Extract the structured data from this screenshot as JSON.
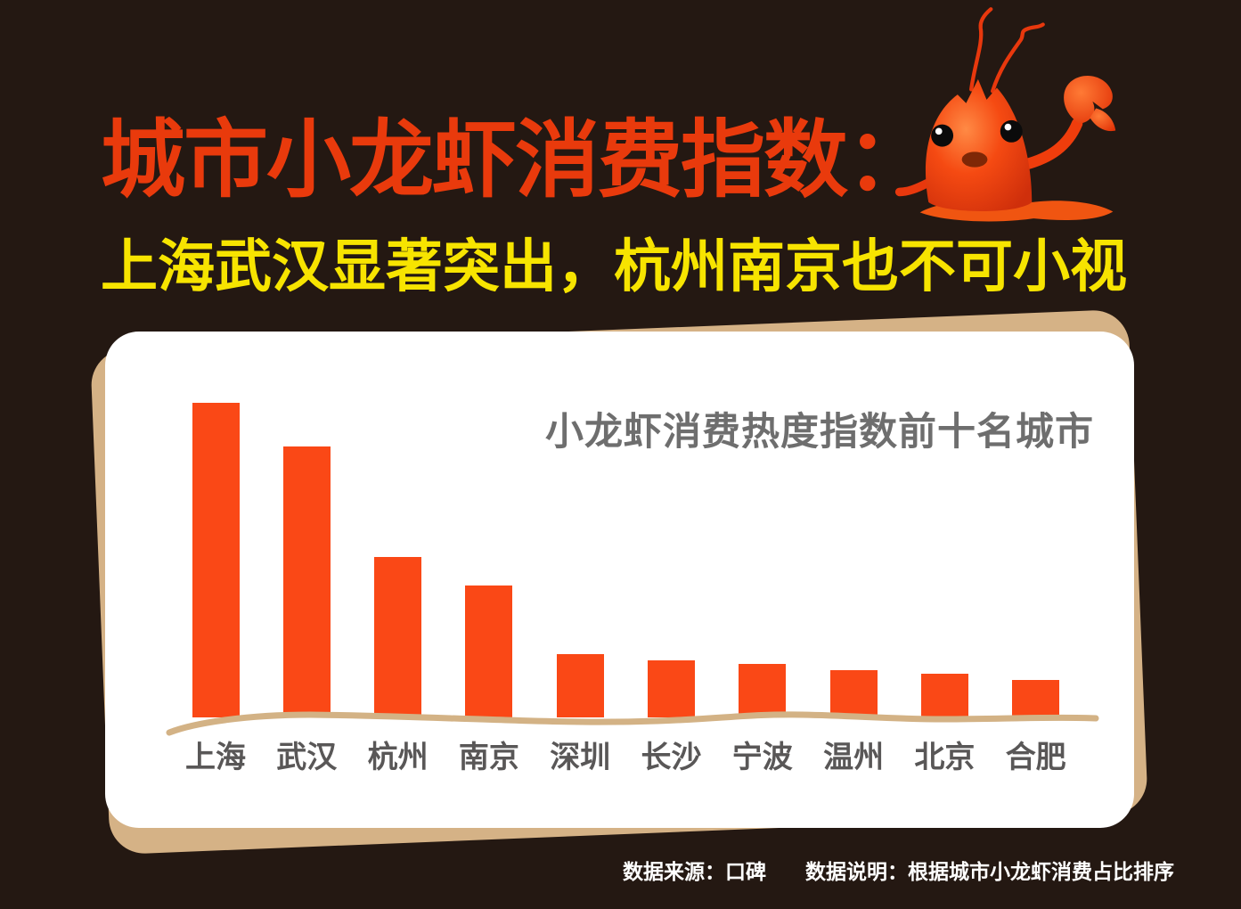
{
  "page": {
    "title": "城市小龙虾消费指数：",
    "subtitle": "上海武汉显著突出，杭州南京也不可小视",
    "background_color": "#241812",
    "title_color": "#e93a0c",
    "subtitle_color": "#f7e400",
    "mascot": "crayfish-mascot"
  },
  "card": {
    "front_color": "#ffffff",
    "back_color": "#d5b286"
  },
  "chart_data": {
    "type": "bar",
    "title": "小龙虾消费热度指数前十名城市",
    "categories": [
      "上海",
      "武汉",
      "杭州",
      "南京",
      "深圳",
      "长沙",
      "宁波",
      "温州",
      "北京",
      "合肥"
    ],
    "values": [
      100,
      86,
      51,
      42,
      20,
      18,
      17,
      15,
      14,
      12
    ],
    "ylim": [
      0,
      100
    ],
    "grid": false,
    "legend": "none",
    "bar_color": "#fa4816",
    "baseline_color": "#d3b285",
    "title_color": "#6e6e6e",
    "label_color": "#595757"
  },
  "footer": {
    "source_label": "数据来源：口碑",
    "note_label": "数据说明：根据城市小龙虾消费占比排序"
  }
}
